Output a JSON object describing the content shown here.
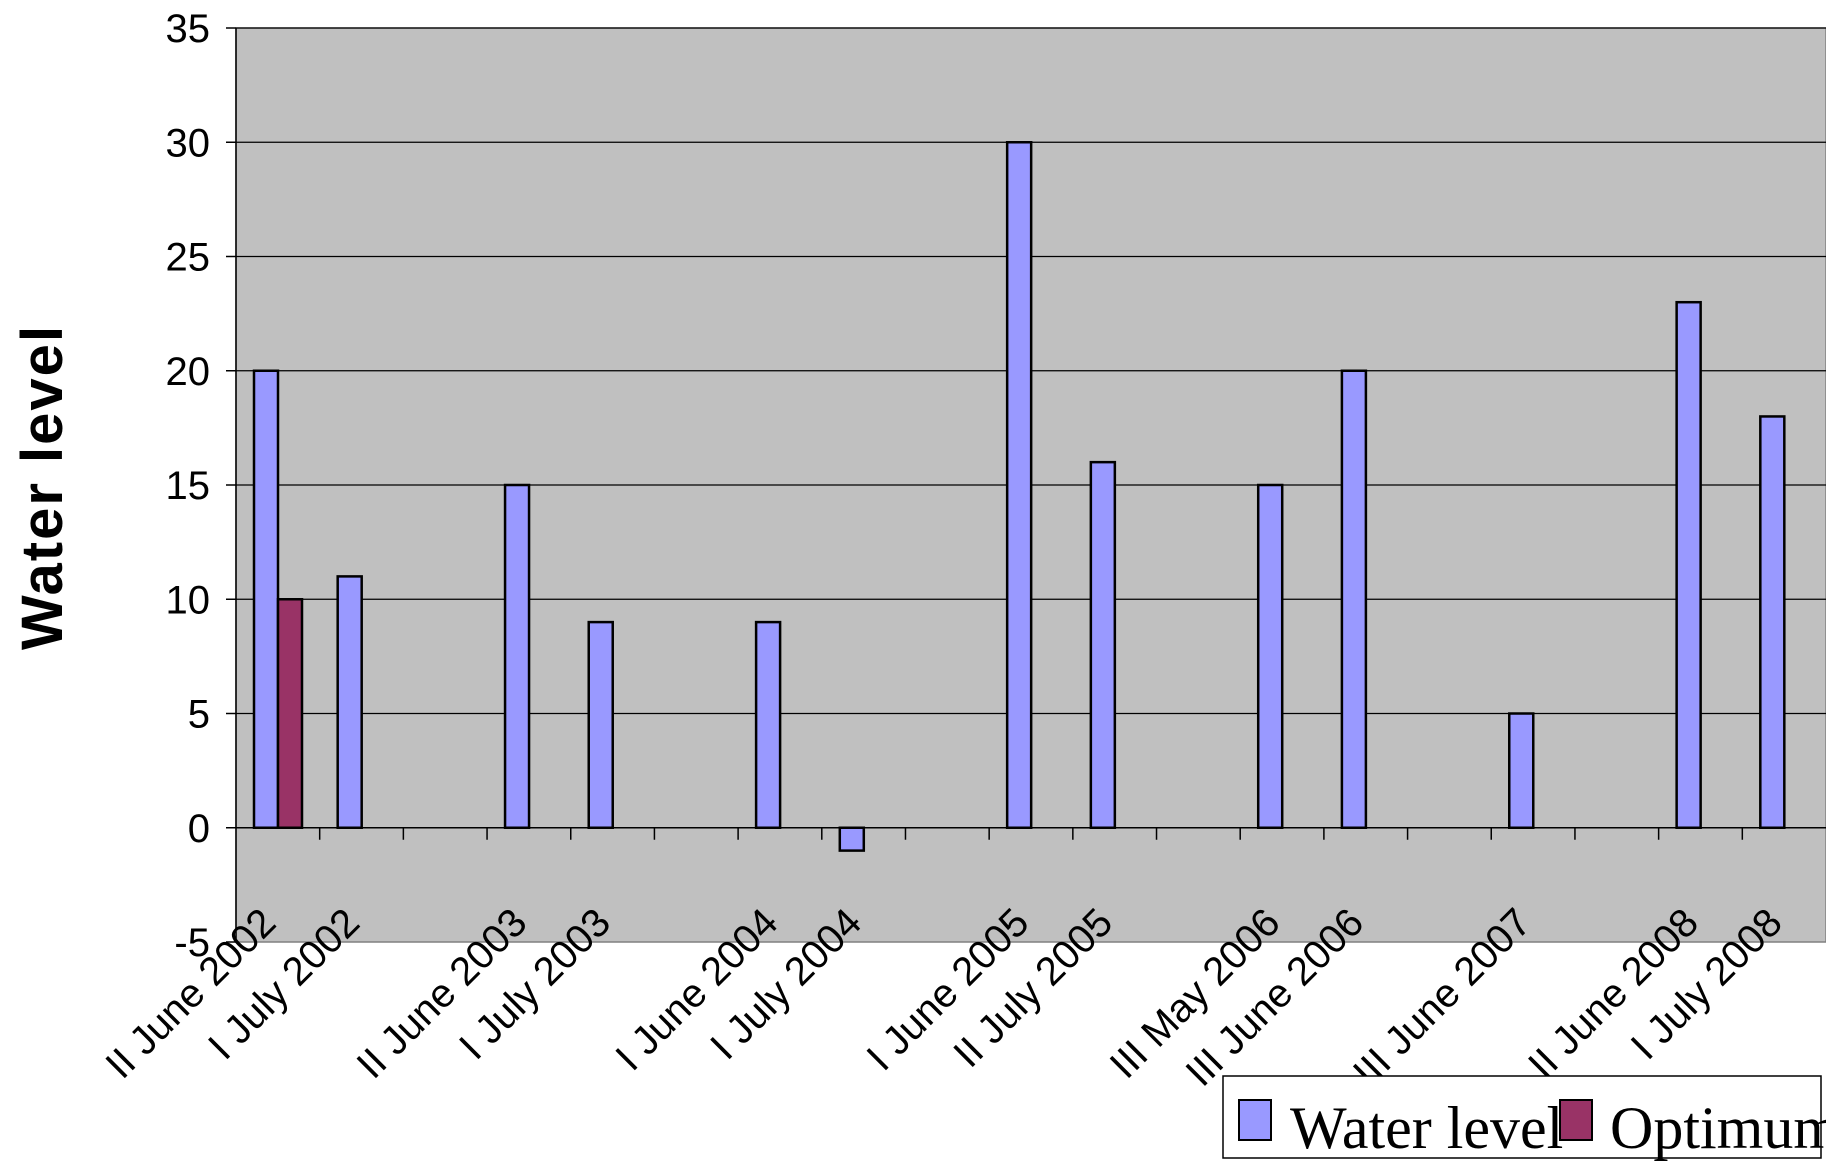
{
  "colors": {
    "plot_background": "#c0c0c0",
    "water_level": "#9999ff",
    "optimum": "#993366"
  },
  "chart_data": {
    "type": "bar",
    "ylabel": "Water level",
    "ylim": [
      -5,
      35
    ],
    "yticks": [
      -5,
      0,
      5,
      10,
      15,
      20,
      25,
      30,
      35
    ],
    "grid": true,
    "legend_position": "bottom-right",
    "categories": [
      "II June 2002",
      "I July 2002",
      "",
      "II June 2003",
      "I July 2003",
      "",
      "I June 2004",
      "I July 2004",
      "",
      "I June 2005",
      "II July 2005",
      "",
      "III May 2006",
      "III June 2006",
      "",
      "III June 2007",
      "",
      "II June 2008",
      "I July 2008"
    ],
    "series": [
      {
        "name": "Water level",
        "values": [
          20,
          11,
          null,
          15,
          9,
          null,
          9,
          -1,
          null,
          30,
          16,
          null,
          15,
          20,
          null,
          5,
          null,
          23,
          18
        ]
      },
      {
        "name": "Optimum",
        "values": [
          10,
          null,
          null,
          null,
          null,
          null,
          null,
          null,
          null,
          null,
          null,
          null,
          null,
          null,
          null,
          null,
          null,
          null,
          null
        ]
      }
    ]
  }
}
